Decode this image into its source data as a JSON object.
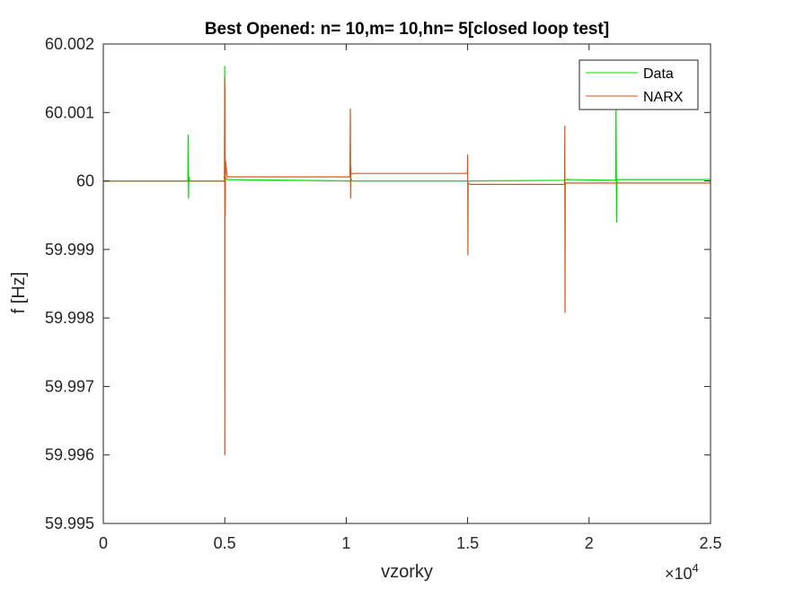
{
  "chart_data": {
    "type": "line",
    "title": "Best Opened: n= 10,m= 10,hn= 5[closed loop test]",
    "xlabel": "vzorky",
    "ylabel": "f [Hz]",
    "x_exponent_label": "×10",
    "x_exponent_power": "4",
    "xlim": [
      0,
      25000
    ],
    "ylim": [
      59.995,
      60.002
    ],
    "x_ticks": [
      0,
      5000,
      10000,
      15000,
      20000,
      25000
    ],
    "x_tick_labels": [
      "0",
      "0.5",
      "1",
      "1.5",
      "2",
      "2.5"
    ],
    "y_ticks": [
      59.995,
      59.996,
      59.997,
      59.998,
      59.999,
      60,
      60.001,
      60.002
    ],
    "y_tick_labels": [
      "59.995",
      "59.996",
      "59.997",
      "59.998",
      "59.999",
      "60",
      "60.001",
      "60.002"
    ],
    "grid": false,
    "legend_position": "top-right",
    "series": [
      {
        "name": "Data",
        "color": "#00dd00",
        "x": [
          0,
          3480,
          3500,
          3510,
          3520,
          3560,
          4990,
          5000,
          5010,
          5020,
          5100,
          10200,
          10210,
          10220,
          15000,
          15010,
          15020,
          19000,
          19010,
          21100,
          21110,
          21130,
          21150,
          25000
        ],
        "y": [
          60.0,
          60.0,
          60.00067,
          59.99975,
          60.00006,
          60.0,
          60.0,
          60.00167,
          59.99985,
          60.00005,
          60.00002,
          60.0,
          60.00003,
          60.0,
          60.0,
          59.99999,
          60.0,
          60.00001,
          60.00002,
          60.00001,
          60.00105,
          59.9994,
          60.00002,
          60.00002
        ]
      },
      {
        "name": "NARX",
        "color": "#d95319",
        "x": [
          0,
          4990,
          5000,
          5005,
          5010,
          5020,
          5030,
          5100,
          10150,
          10170,
          10180,
          10190,
          10200,
          10300,
          14990,
          15000,
          15010,
          15020,
          15100,
          18990,
          19000,
          19010,
          19020,
          19100,
          25000
        ],
        "y": [
          60.0,
          60.0,
          60.0015,
          59.996,
          60.0014,
          59.9995,
          60.0003,
          60.00006,
          60.00006,
          60.00105,
          59.99975,
          60.0002,
          60.0001,
          60.00011,
          60.00011,
          60.00038,
          59.99892,
          59.99997,
          59.99995,
          59.99995,
          60.0008,
          59.99808,
          59.99997,
          59.99997,
          59.99997
        ]
      }
    ]
  }
}
